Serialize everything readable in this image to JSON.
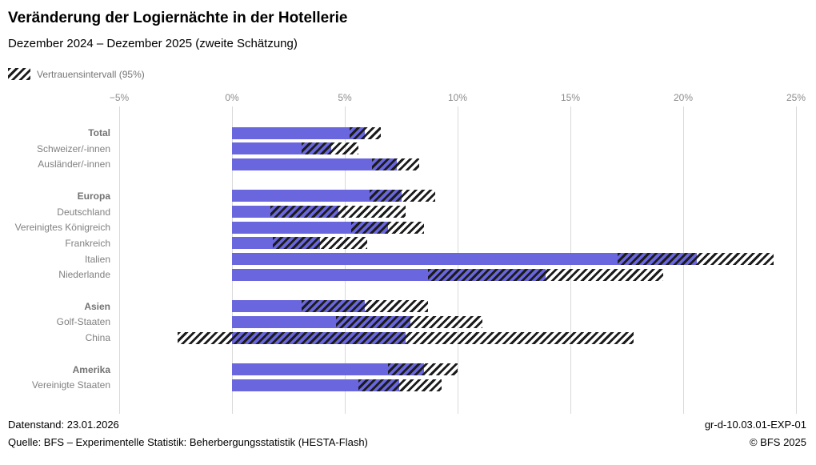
{
  "title": "Veränderung der Logiernächte in der Hotellerie",
  "subtitle": "Dezember 2024 – Dezember 2025 (zweite Schätzung)",
  "legend": {
    "label": "Vertrauensintervall (95%)"
  },
  "colors": {
    "bar": "#6966de",
    "hatch": "#1c1c1c",
    "grid": "#d9d9d9",
    "axis_text": "#8c8c8c",
    "label_text": "#818181"
  },
  "footer": {
    "datenstand": "Datenstand: 23.01.2026",
    "quelle": "Quelle: BFS – Experimentelle Statistik: Beherbergungsstatistik (HESTA-Flash)",
    "code": "gr-d-10.03.01-EXP-01",
    "copyright": "© BFS 2025"
  },
  "chart_data": {
    "type": "bar",
    "orientation": "horizontal",
    "unit": "percent",
    "title": "Veränderung der Logiernächte in der Hotellerie",
    "subtitle": "Dezember 2024 – Dezember 2025 (zweite Schätzung)",
    "xlim": [
      -5,
      25
    ],
    "x_ticks": [
      "−5%",
      "0%",
      "5%",
      "10%",
      "15%",
      "20%",
      "25%"
    ],
    "x_tick_values": [
      -5,
      0,
      5,
      10,
      15,
      20,
      25
    ],
    "grid": true,
    "legend": [
      "Vertrauensintervall (95%)"
    ],
    "rows": [
      {
        "label": "Total",
        "bold": true,
        "value": 5.9,
        "ci_low": 5.2,
        "ci_high": 6.6,
        "gap_after": false
      },
      {
        "label": "Schweizer/-innen",
        "bold": false,
        "value": 4.4,
        "ci_low": 3.1,
        "ci_high": 5.6,
        "gap_after": false
      },
      {
        "label": "Ausländer/-innen",
        "bold": false,
        "value": 7.3,
        "ci_low": 6.2,
        "ci_high": 8.3,
        "gap_after": true
      },
      {
        "label": "Europa",
        "bold": true,
        "value": 7.5,
        "ci_low": 6.1,
        "ci_high": 9.0,
        "gap_after": false
      },
      {
        "label": "Deutschland",
        "bold": false,
        "value": 4.7,
        "ci_low": 1.7,
        "ci_high": 7.7,
        "gap_after": false
      },
      {
        "label": "Vereinigtes Königreich",
        "bold": false,
        "value": 6.9,
        "ci_low": 5.3,
        "ci_high": 8.5,
        "gap_after": false
      },
      {
        "label": "Frankreich",
        "bold": false,
        "value": 3.9,
        "ci_low": 1.8,
        "ci_high": 6.0,
        "gap_after": false
      },
      {
        "label": "Italien",
        "bold": false,
        "value": 20.6,
        "ci_low": 17.1,
        "ci_high": 24.0,
        "gap_after": false
      },
      {
        "label": "Niederlande",
        "bold": false,
        "value": 13.9,
        "ci_low": 8.7,
        "ci_high": 19.1,
        "gap_after": true
      },
      {
        "label": "Asien",
        "bold": true,
        "value": 5.9,
        "ci_low": 3.1,
        "ci_high": 8.7,
        "gap_after": false
      },
      {
        "label": "Golf-Staaten",
        "bold": false,
        "value": 7.9,
        "ci_low": 4.6,
        "ci_high": 11.1,
        "gap_after": false
      },
      {
        "label": "China",
        "bold": false,
        "value": 7.7,
        "ci_low": -2.4,
        "ci_high": 17.8,
        "gap_after": true
      },
      {
        "label": "Amerika",
        "bold": true,
        "value": 8.5,
        "ci_low": 6.9,
        "ci_high": 10.0,
        "gap_after": false
      },
      {
        "label": "Vereinigte Staaten",
        "bold": false,
        "value": 7.4,
        "ci_low": 5.6,
        "ci_high": 9.3,
        "gap_after": false
      }
    ]
  }
}
